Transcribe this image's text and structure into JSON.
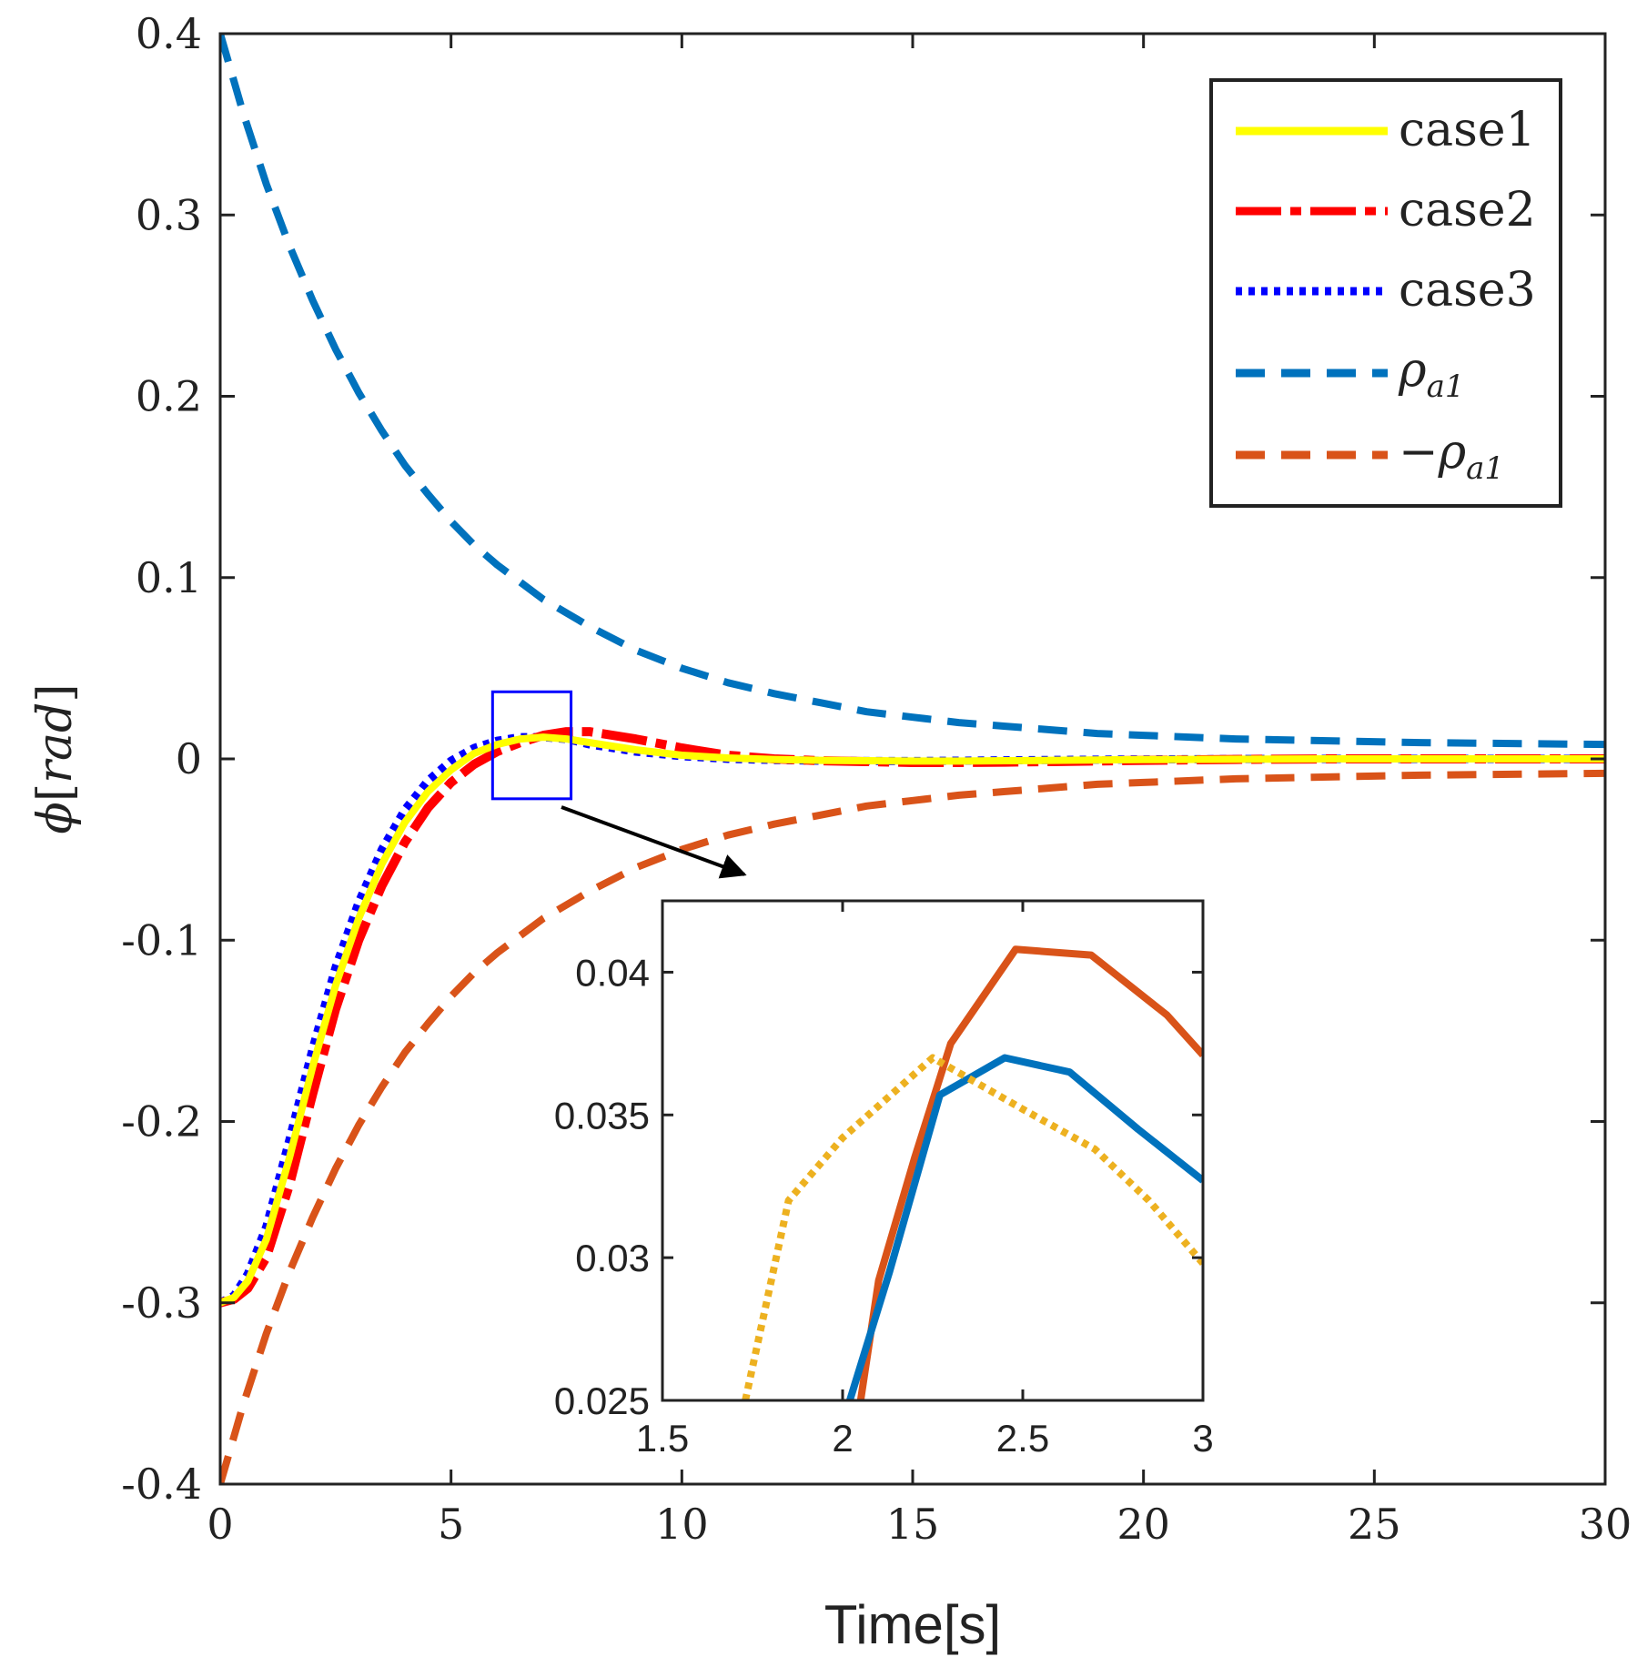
{
  "chart_data": {
    "type": "line",
    "main": {
      "xlabel": "Time[s]",
      "ylabel_parts": {
        "symbol": "ϕ",
        "open": "[",
        "unit": "rad",
        "close": "]"
      },
      "xlim": [
        0,
        30
      ],
      "ylim": [
        -0.4,
        0.4
      ],
      "xticks": [
        0,
        5,
        10,
        15,
        20,
        25,
        30
      ],
      "xtick_labels": [
        "0",
        "5",
        "10",
        "15",
        "20",
        "25",
        "30"
      ],
      "yticks": [
        0.4,
        0.3,
        0.2,
        0.1,
        0,
        -0.1,
        -0.2,
        -0.3,
        -0.4
      ],
      "ytick_labels": [
        "0.4",
        "0.3",
        "0.2",
        "0.1",
        "0",
        "-0.1",
        "-0.2",
        "-0.3",
        "-0.4"
      ],
      "legend_position": "top-right",
      "legend": [
        {
          "label": "case1",
          "color": "#FFFF00",
          "style": "solid"
        },
        {
          "label": "case2",
          "color": "#FF0000",
          "style": "dashdot"
        },
        {
          "label": "case3",
          "color": "#0000FF",
          "style": "dotted"
        },
        {
          "label": "ρa1",
          "main": "ρ",
          "sub": "a1",
          "color": "#0072BD",
          "style": "dashed"
        },
        {
          "label": "−ρa1",
          "main": "−ρ",
          "sub": "a1",
          "color": "#D95319",
          "style": "dashed"
        }
      ],
      "series": [
        {
          "name": "case1",
          "color": "#FFFF00",
          "style": "solid",
          "x": [
            0,
            0.3,
            0.6,
            1,
            1.5,
            2,
            2.5,
            3,
            3.5,
            4,
            4.5,
            5,
            5.5,
            6,
            6.5,
            7,
            7.5,
            8,
            9,
            10,
            11,
            12,
            13,
            14,
            15,
            16,
            17,
            18,
            20,
            22,
            24,
            26,
            28,
            30
          ],
          "y": [
            -0.3,
            -0.297,
            -0.288,
            -0.265,
            -0.22,
            -0.17,
            -0.125,
            -0.088,
            -0.058,
            -0.035,
            -0.018,
            -0.006,
            0.003,
            0.008,
            0.011,
            0.012,
            0.011,
            0.009,
            0.005,
            0.002,
            0.0005,
            -0.0003,
            -0.0008,
            -0.001,
            -0.0012,
            -0.0012,
            -0.001,
            -0.0008,
            -0.0004,
            -0.0002,
            0,
            0,
            0,
            0
          ]
        },
        {
          "name": "case2",
          "color": "#FF0000",
          "style": "dashdot",
          "x": [
            0,
            0.3,
            0.6,
            1,
            1.5,
            2,
            2.5,
            3,
            3.5,
            4,
            4.5,
            5,
            5.5,
            6,
            6.5,
            7,
            7.5,
            8,
            9,
            10,
            11,
            12,
            13,
            14,
            15,
            16,
            17,
            18,
            20,
            22,
            24,
            26,
            28,
            30
          ],
          "y": [
            -0.3,
            -0.298,
            -0.292,
            -0.275,
            -0.235,
            -0.185,
            -0.138,
            -0.1,
            -0.07,
            -0.046,
            -0.027,
            -0.013,
            -0.003,
            0.004,
            0.009,
            0.013,
            0.015,
            0.015,
            0.011,
            0.006,
            0.002,
            0,
            -0.001,
            -0.0015,
            -0.002,
            -0.002,
            -0.0018,
            -0.0015,
            -0.0008,
            -0.0003,
            0,
            0,
            0,
            0
          ]
        },
        {
          "name": "case3",
          "color": "#0000FF",
          "style": "dotted",
          "x": [
            0,
            0.3,
            0.6,
            1,
            1.5,
            2,
            2.5,
            3,
            3.5,
            4,
            4.5,
            5,
            5.5,
            6,
            6.5,
            7,
            7.5,
            8,
            9,
            10,
            11,
            12,
            13,
            14,
            15,
            16,
            17,
            18,
            20,
            22,
            24,
            26,
            28,
            30
          ],
          "y": [
            -0.3,
            -0.296,
            -0.284,
            -0.258,
            -0.21,
            -0.16,
            -0.115,
            -0.079,
            -0.05,
            -0.028,
            -0.012,
            -0.001,
            0.006,
            0.01,
            0.012,
            0.012,
            0.011,
            0.008,
            0.004,
            0.0015,
            0,
            -0.0006,
            -0.001,
            -0.0012,
            -0.0012,
            -0.001,
            -0.0008,
            -0.0006,
            -0.0003,
            -0.0001,
            0,
            0,
            0,
            0
          ]
        },
        {
          "name": "ρa1",
          "color": "#0072BD",
          "style": "dashed",
          "x": [
            0,
            0.5,
            1,
            1.5,
            2,
            2.5,
            3,
            3.5,
            4,
            4.5,
            5,
            5.5,
            6,
            7,
            8,
            9,
            10,
            11,
            12,
            13,
            14,
            15,
            16,
            17,
            18,
            19,
            20,
            22,
            24,
            26,
            28,
            30
          ],
          "y": [
            0.4,
            0.356,
            0.317,
            0.283,
            0.253,
            0.226,
            0.202,
            0.181,
            0.162,
            0.146,
            0.131,
            0.118,
            0.107,
            0.088,
            0.073,
            0.06,
            0.05,
            0.042,
            0.036,
            0.031,
            0.026,
            0.023,
            0.02,
            0.018,
            0.016,
            0.014,
            0.013,
            0.011,
            0.01,
            0.009,
            0.0085,
            0.008
          ]
        },
        {
          "name": "−ρa1",
          "color": "#D95319",
          "style": "dashed",
          "x": [
            0,
            0.5,
            1,
            1.5,
            2,
            2.5,
            3,
            3.5,
            4,
            4.5,
            5,
            5.5,
            6,
            7,
            8,
            9,
            10,
            11,
            12,
            13,
            14,
            15,
            16,
            17,
            18,
            19,
            20,
            22,
            24,
            26,
            28,
            30
          ],
          "y": [
            -0.4,
            -0.356,
            -0.317,
            -0.283,
            -0.253,
            -0.226,
            -0.202,
            -0.181,
            -0.162,
            -0.146,
            -0.131,
            -0.118,
            -0.107,
            -0.088,
            -0.073,
            -0.06,
            -0.05,
            -0.042,
            -0.036,
            -0.031,
            -0.026,
            -0.023,
            -0.02,
            -0.018,
            -0.016,
            -0.014,
            -0.013,
            -0.011,
            -0.01,
            -0.009,
            -0.0085,
            -0.008
          ]
        }
      ],
      "zoom_box": {
        "x": [
          5.9,
          7.6
        ],
        "y": [
          -0.022,
          0.037
        ]
      }
    },
    "inset": {
      "xlim": [
        1.5,
        3
      ],
      "ylim": [
        0.025,
        0.0425
      ],
      "xticks": [
        1.5,
        2,
        2.5,
        3
      ],
      "xtick_labels": [
        "1.5",
        "2",
        "2.5",
        "3"
      ],
      "yticks": [
        0.025,
        0.03,
        0.035,
        0.04
      ],
      "ytick_labels": [
        "0.025",
        "0.03",
        "0.035",
        "0.04"
      ],
      "series": [
        {
          "name": "orange",
          "color": "#D95319",
          "style": "solid",
          "x": [
            2.05,
            2.1,
            2.2,
            2.3,
            2.48,
            2.69,
            2.9,
            3.0
          ],
          "y": [
            0.025,
            0.0292,
            0.0335,
            0.0375,
            0.0408,
            0.0406,
            0.0385,
            0.0371
          ]
        },
        {
          "name": "blue",
          "color": "#0072BD",
          "style": "solid",
          "x": [
            2.02,
            2.13,
            2.27,
            2.45,
            2.63,
            2.82,
            3.0
          ],
          "y": [
            0.025,
            0.0295,
            0.0357,
            0.037,
            0.0365,
            0.0345,
            0.0327
          ]
        },
        {
          "name": "yellow",
          "color": "#EDB120",
          "style": "dotted",
          "x": [
            1.73,
            1.85,
            2.0,
            2.25,
            2.5,
            2.7,
            2.85,
            3.0
          ],
          "y": [
            0.025,
            0.032,
            0.0342,
            0.037,
            0.0352,
            0.0338,
            0.032,
            0.0298
          ]
        }
      ]
    }
  }
}
